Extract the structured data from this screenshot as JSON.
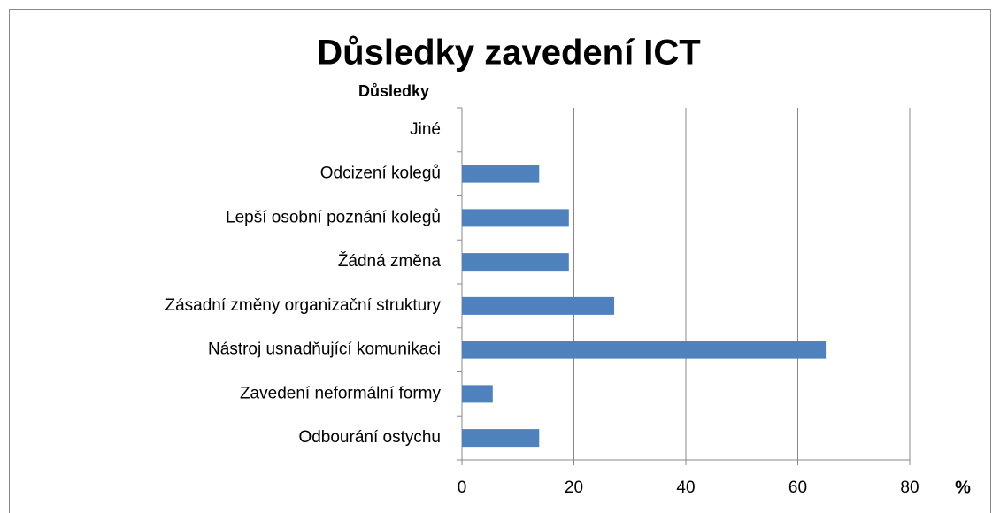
{
  "chart_data": {
    "type": "barh",
    "title": "Důsledky zavedení ICT",
    "y_label": "Důsledky",
    "x_label": "%",
    "categories": [
      "Jiné",
      "Odcizení kolegů",
      "Lepší osobní poznání kolegů",
      "Žádná změna",
      "Zásadní změny organizační struktury",
      "Nástroj usnadňující komunikaci",
      "Zavedení neformální formy",
      "Odbourání ostychu"
    ],
    "values": [
      0,
      13.8,
      19.1,
      19.1,
      27.2,
      65,
      5.5,
      13.8
    ],
    "color": "#4f81bd",
    "xlim": [
      0,
      80
    ],
    "xticks": [
      0,
      20,
      40,
      60,
      80
    ],
    "grid": true
  }
}
